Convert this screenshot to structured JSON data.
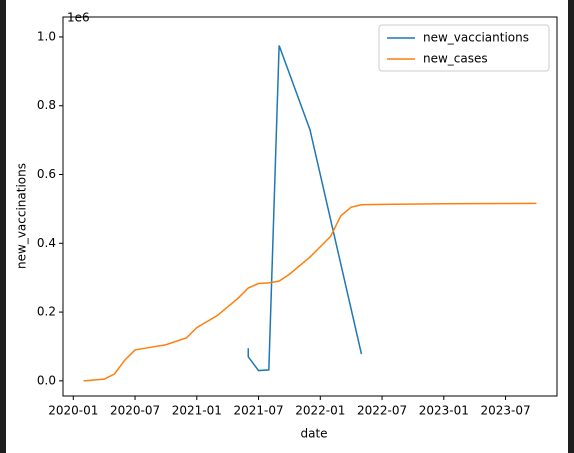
{
  "chart_data": {
    "type": "line",
    "offset_label": "1e6",
    "x_label": "date",
    "y_label": "new_vaccinations",
    "xlim": [
      "2019-12",
      "2023-12"
    ],
    "xticks": [
      "2020-01",
      "2020-07",
      "2021-01",
      "2021-07",
      "2022-01",
      "2022-07",
      "2023-01",
      "2023-07"
    ],
    "ylim": [
      -0.044,
      1.058
    ],
    "yticks": [
      {
        "value": 0,
        "label": "0.0"
      },
      {
        "value": 0.2,
        "label": "0.2"
      },
      {
        "value": 0.4,
        "label": "0.4"
      },
      {
        "value": 0.6,
        "label": "0.6"
      },
      {
        "value": 0.8,
        "label": "0.8"
      },
      {
        "value": 1,
        "label": "1.0"
      }
    ],
    "legend": "upper right",
    "series": [
      {
        "name": "new_vacciantions",
        "color": "#1f77b4",
        "x": [
          "2021-06",
          "2021-06",
          "2021-07",
          "2021-08",
          "2021-09",
          "2021-12",
          "2022-05"
        ],
        "values": [
          0.095,
          0.07,
          0.03,
          0.032,
          0.975,
          0.73,
          0.078
        ]
      },
      {
        "name": "new_cases",
        "color": "#ff7f0e",
        "x": [
          "2020-02",
          "2020-04",
          "2020-05",
          "2020-06",
          "2020-07",
          "2020-08",
          "2020-10",
          "2020-12",
          "2021-01",
          "2021-03",
          "2021-05",
          "2021-06",
          "2021-07",
          "2021-08",
          "2021-09",
          "2021-10",
          "2021-12",
          "2022-01",
          "2022-02",
          "2022-03",
          "2022-04",
          "2022-05",
          "2022-07",
          "2023-01",
          "2023-10"
        ],
        "values": [
          0.0,
          0.005,
          0.02,
          0.06,
          0.09,
          0.095,
          0.105,
          0.125,
          0.155,
          0.19,
          0.24,
          0.27,
          0.283,
          0.285,
          0.29,
          0.31,
          0.36,
          0.39,
          0.42,
          0.48,
          0.505,
          0.512,
          0.513,
          0.515,
          0.516
        ]
      }
    ]
  }
}
